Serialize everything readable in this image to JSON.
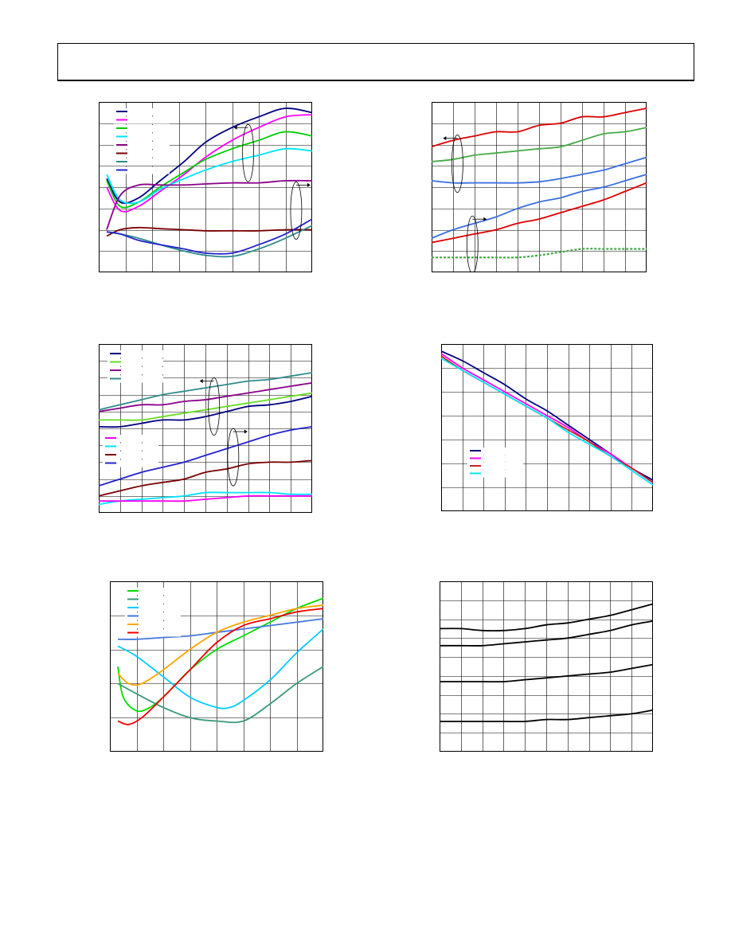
{
  "page": {
    "background": "#ffffff",
    "line_color": "#000000"
  },
  "chart_data": [
    {
      "id": "chart-1",
      "type": "line",
      "title": "",
      "xlabel": "",
      "ylabel": "",
      "xlim": [
        0,
        8
      ],
      "ylim": [
        0,
        8
      ],
      "grid": true,
      "legend": "top-left",
      "annotations": [
        {
          "kind": "ellipse-arrow",
          "cx": 5.6,
          "cy": 5.6,
          "direction": "left"
        },
        {
          "kind": "ellipse-arrow",
          "cx": 7.4,
          "cy": 2.9,
          "direction": "right"
        }
      ],
      "series": [
        {
          "color": "#000080",
          "x": [
            0.3,
            0.8,
            1.5,
            2.3,
            3.2,
            4.0,
            5.0,
            6.0,
            7.0,
            8.0
          ],
          "y": [
            4.4,
            3.3,
            3.5,
            4.3,
            5.2,
            6.1,
            6.8,
            7.3,
            7.7,
            7.5
          ]
        },
        {
          "color": "#ff00ff",
          "x": [
            0.3,
            0.8,
            1.5,
            2.3,
            3.2,
            4.0,
            5.0,
            6.0,
            7.0,
            8.0
          ],
          "y": [
            4.0,
            2.9,
            3.1,
            3.8,
            4.6,
            5.4,
            6.2,
            6.8,
            7.3,
            7.4
          ]
        },
        {
          "color": "#00cc00",
          "x": [
            0.3,
            0.8,
            1.5,
            2.3,
            3.2,
            4.0,
            5.0,
            6.0,
            7.0,
            8.0
          ],
          "y": [
            4.3,
            3.1,
            3.3,
            4.0,
            4.7,
            5.3,
            5.8,
            6.2,
            6.6,
            6.4
          ]
        },
        {
          "color": "#00e5ff",
          "x": [
            0.3,
            0.8,
            1.5,
            2.3,
            3.2,
            4.0,
            5.0,
            6.0,
            7.0,
            8.0
          ],
          "y": [
            4.6,
            3.4,
            3.3,
            3.9,
            4.4,
            4.8,
            5.2,
            5.5,
            5.8,
            5.7
          ]
        },
        {
          "color": "#8b008b",
          "x": [
            0.3,
            0.8,
            1.5,
            2.3,
            3.2,
            4.0,
            5.0,
            6.0,
            7.0,
            8.0
          ],
          "y": [
            2.0,
            3.6,
            4.1,
            4.1,
            4.1,
            4.15,
            4.2,
            4.2,
            4.3,
            4.3
          ]
        },
        {
          "color": "#7a0000",
          "x": [
            0.3,
            0.8,
            1.5,
            2.3,
            3.2,
            4.0,
            5.0,
            6.0,
            7.0,
            8.0
          ],
          "y": [
            1.7,
            2.0,
            2.1,
            2.05,
            2.0,
            1.95,
            1.95,
            1.95,
            2.0,
            2.0
          ]
        },
        {
          "color": "#2e8b8b",
          "x": [
            0.3,
            0.8,
            1.5,
            2.3,
            3.2,
            4.0,
            5.0,
            6.0,
            7.0,
            8.0
          ],
          "y": [
            1.9,
            1.8,
            1.6,
            1.3,
            1.0,
            0.8,
            0.75,
            1.1,
            1.6,
            2.2
          ]
        },
        {
          "color": "#2222cc",
          "x": [
            0.3,
            0.8,
            1.5,
            2.3,
            3.2,
            4.0,
            5.0,
            6.0,
            7.0,
            8.0
          ],
          "y": [
            1.9,
            1.8,
            1.5,
            1.3,
            1.1,
            0.9,
            0.9,
            1.3,
            1.8,
            2.5
          ]
        }
      ]
    },
    {
      "id": "chart-2",
      "type": "line",
      "title": "",
      "xlabel": "",
      "ylabel": "",
      "xlim": [
        0,
        10
      ],
      "ylim": [
        0,
        8
      ],
      "grid": true,
      "legend": "none",
      "annotations": [
        {
          "kind": "ellipse-arrow",
          "cx": 1.2,
          "cy": 5.1,
          "direction": "left"
        },
        {
          "kind": "ellipse-arrow",
          "cx": 1.9,
          "cy": 1.3,
          "direction": "right"
        }
      ],
      "series": [
        {
          "color": "#dd0000",
          "x": [
            0,
            1,
            2,
            3,
            4,
            5,
            6,
            7,
            8,
            9,
            10
          ],
          "y": [
            5.9,
            6.2,
            6.4,
            6.6,
            6.6,
            6.9,
            7.0,
            7.3,
            7.3,
            7.5,
            7.7
          ]
        },
        {
          "color": "#44aa44",
          "x": [
            0,
            1,
            2,
            3,
            4,
            5,
            6,
            7,
            8,
            9,
            10
          ],
          "y": [
            5.2,
            5.3,
            5.5,
            5.6,
            5.7,
            5.8,
            5.9,
            6.2,
            6.5,
            6.6,
            6.8
          ]
        },
        {
          "color": "#3a6fe0",
          "x": [
            0,
            1,
            2,
            3,
            4,
            5,
            6,
            7,
            8,
            9,
            10
          ],
          "y": [
            4.3,
            4.2,
            4.2,
            4.2,
            4.2,
            4.25,
            4.4,
            4.6,
            4.8,
            5.1,
            5.4
          ]
        },
        {
          "color": "#3a6fe0",
          "x": [
            0,
            1,
            2,
            3,
            4,
            5,
            6,
            7,
            8,
            9,
            10
          ],
          "y": [
            1.6,
            2.0,
            2.3,
            2.6,
            3.0,
            3.3,
            3.5,
            3.8,
            4.0,
            4.3,
            4.6
          ]
        },
        {
          "color": "#dd0000",
          "x": [
            0,
            1,
            2,
            3,
            4,
            5,
            6,
            7,
            8,
            9,
            10
          ],
          "y": [
            1.4,
            1.6,
            1.8,
            2.0,
            2.3,
            2.5,
            2.8,
            3.1,
            3.4,
            3.8,
            4.2
          ]
        },
        {
          "color": "#44aa44",
          "x": [
            0,
            1,
            2,
            3,
            4,
            5,
            6,
            7,
            8,
            9,
            10
          ],
          "y": [
            0.7,
            0.7,
            0.7,
            0.7,
            0.7,
            0.8,
            0.95,
            1.1,
            1.1,
            1.1,
            1.1
          ],
          "dashed": true
        }
      ]
    },
    {
      "id": "chart-3",
      "type": "line",
      "title": "",
      "xlabel": "",
      "ylabel": "",
      "xlim": [
        0,
        10
      ],
      "ylim": [
        0,
        10
      ],
      "grid": true,
      "legend": "top-left",
      "annotations": [
        {
          "kind": "ellipse-arrow",
          "cx": 5.4,
          "cy": 6.3,
          "direction": "left"
        },
        {
          "kind": "ellipse-arrow",
          "cx": 6.3,
          "cy": 3.3,
          "direction": "right"
        }
      ],
      "series": [
        {
          "color": "#000080",
          "x": [
            0,
            1,
            2,
            3,
            4,
            5,
            6,
            7,
            8,
            9,
            10
          ],
          "y": [
            5.1,
            5.1,
            5.3,
            5.5,
            5.5,
            5.7,
            6.0,
            6.3,
            6.4,
            6.6,
            6.9
          ]
        },
        {
          "color": "#66dd22",
          "x": [
            0,
            1,
            2,
            3,
            4,
            5,
            6,
            7,
            8,
            9,
            10
          ],
          "y": [
            5.5,
            5.5,
            5.5,
            5.7,
            5.9,
            6.1,
            6.3,
            6.5,
            6.7,
            6.9,
            7.1
          ]
        },
        {
          "color": "#8b008b",
          "x": [
            0,
            1,
            2,
            3,
            4,
            5,
            6,
            7,
            8,
            9,
            10
          ],
          "y": [
            6.0,
            6.2,
            6.4,
            6.4,
            6.6,
            6.7,
            6.9,
            7.1,
            7.3,
            7.5,
            7.7
          ]
        },
        {
          "color": "#2e8b8b",
          "x": [
            0,
            1,
            2,
            3,
            4,
            5,
            6,
            7,
            8,
            9,
            10
          ],
          "y": [
            6.1,
            6.4,
            6.7,
            7.0,
            7.2,
            7.4,
            7.6,
            7.8,
            7.9,
            8.1,
            8.3
          ]
        },
        {
          "color": "#2222cc",
          "x": [
            0,
            1,
            2,
            3,
            4,
            5,
            6,
            7,
            8,
            9,
            10
          ],
          "y": [
            1.6,
            2.0,
            2.4,
            2.7,
            3.0,
            3.4,
            3.8,
            4.2,
            4.6,
            4.9,
            5.1
          ]
        },
        {
          "color": "#7a0000",
          "x": [
            0,
            1,
            2,
            3,
            4,
            5,
            6,
            7,
            8,
            9,
            10
          ],
          "y": [
            1.0,
            1.3,
            1.6,
            1.8,
            2.0,
            2.4,
            2.6,
            2.9,
            3.0,
            3.0,
            3.1
          ]
        },
        {
          "color": "#00e5ff",
          "x": [
            0,
            1,
            2,
            3,
            4,
            5,
            6,
            7,
            8,
            9,
            10
          ],
          "y": [
            0.5,
            0.7,
            0.8,
            0.9,
            1.0,
            1.2,
            1.2,
            1.2,
            1.2,
            1.1,
            1.1
          ]
        },
        {
          "color": "#ff00ff",
          "x": [
            0,
            1,
            2,
            3,
            4,
            5,
            6,
            7,
            8,
            9,
            10
          ],
          "y": [
            0.7,
            0.7,
            0.7,
            0.7,
            0.7,
            0.8,
            0.9,
            1.0,
            1.0,
            1.0,
            1.0
          ]
        }
      ]
    },
    {
      "id": "chart-4",
      "type": "line",
      "title": "",
      "xlabel": "",
      "ylabel": "",
      "xlim": [
        0,
        10
      ],
      "ylim": [
        0,
        7
      ],
      "grid": true,
      "legend": "bottom-left",
      "series": [
        {
          "color": "#000080",
          "x": [
            0,
            1,
            2,
            3,
            4,
            5,
            6,
            7,
            8,
            9,
            10
          ],
          "y": [
            6.7,
            6.3,
            5.8,
            5.3,
            4.7,
            4.2,
            3.6,
            3.0,
            2.4,
            1.8,
            1.3
          ]
        },
        {
          "color": "#ff00ff",
          "x": [
            0,
            1,
            2,
            3,
            4,
            5,
            6,
            7,
            8,
            9,
            10
          ],
          "y": [
            6.6,
            6.0,
            5.5,
            5.0,
            4.5,
            4.0,
            3.5,
            2.9,
            2.4,
            1.8,
            1.2
          ]
        },
        {
          "color": "#cc2222",
          "x": [
            0,
            1,
            2,
            3,
            4,
            5,
            6,
            7,
            8,
            9,
            10
          ],
          "y": [
            6.5,
            5.9,
            5.4,
            4.9,
            4.4,
            3.9,
            3.4,
            2.9,
            2.3,
            1.8,
            1.2
          ]
        },
        {
          "color": "#00e5ff",
          "x": [
            0,
            1,
            2,
            3,
            4,
            5,
            6,
            7,
            8,
            9,
            10
          ],
          "y": [
            6.4,
            5.9,
            5.4,
            4.9,
            4.4,
            3.9,
            3.3,
            2.8,
            2.3,
            1.7,
            1.1
          ]
        }
      ]
    },
    {
      "id": "chart-5",
      "type": "line",
      "title": "",
      "xlabel": "",
      "ylabel": "",
      "xlim": [
        0,
        8
      ],
      "ylim": [
        0,
        5
      ],
      "grid": true,
      "legend": "top-left",
      "series": [
        {
          "color": "#00dd00",
          "x": [
            0.3,
            0.5,
            1.0,
            1.5,
            2.0,
            2.5,
            3.0,
            4.0,
            5.0,
            6.0,
            7.0,
            8.0
          ],
          "y": [
            2.5,
            1.6,
            1.2,
            1.3,
            1.6,
            2.0,
            2.4,
            3.0,
            3.4,
            3.8,
            4.2,
            4.5
          ]
        },
        {
          "color": "#3a9a7a",
          "x": [
            0.3,
            1.0,
            2.0,
            3.0,
            4.0,
            5.0,
            6.0,
            7.0,
            8.0
          ],
          "y": [
            2.0,
            1.7,
            1.3,
            1.0,
            0.9,
            0.9,
            1.4,
            2.0,
            2.5
          ]
        },
        {
          "color": "#00ccff",
          "x": [
            0.3,
            1.0,
            2.0,
            3.0,
            4.0,
            4.5,
            5.0,
            6.0,
            7.0,
            8.0
          ],
          "y": [
            3.1,
            2.8,
            2.2,
            1.6,
            1.3,
            1.3,
            1.5,
            2.1,
            2.9,
            3.6
          ]
        },
        {
          "color": "#4477dd",
          "x": [
            0.3,
            1.0,
            2.0,
            3.0,
            4.0,
            5.0,
            6.0,
            7.0,
            8.0
          ],
          "y": [
            3.3,
            3.3,
            3.35,
            3.4,
            3.5,
            3.6,
            3.7,
            3.8,
            3.9
          ]
        },
        {
          "color": "#ffa500",
          "x": [
            0.3,
            0.7,
            1.2,
            2.0,
            3.0,
            4.0,
            5.0,
            6.0,
            7.0,
            8.0
          ],
          "y": [
            2.3,
            2.0,
            2.0,
            2.4,
            3.0,
            3.5,
            3.8,
            4.0,
            4.2,
            4.3
          ]
        },
        {
          "color": "#ee0000",
          "x": [
            0.3,
            0.7,
            1.2,
            2.0,
            3.0,
            4.0,
            5.0,
            6.0,
            7.0,
            8.0
          ],
          "y": [
            0.9,
            0.8,
            1.0,
            1.6,
            2.4,
            3.2,
            3.7,
            3.9,
            4.1,
            4.2
          ]
        }
      ]
    },
    {
      "id": "chart-6",
      "type": "line",
      "title": "",
      "xlabel": "",
      "ylabel": "",
      "xlim": [
        0,
        10
      ],
      "ylim": [
        0,
        9
      ],
      "grid": true,
      "legend": "none",
      "series": [
        {
          "color": "#000000",
          "x": [
            0,
            1,
            2,
            3,
            4,
            5,
            6,
            7,
            8,
            9,
            10
          ],
          "y": [
            6.5,
            6.5,
            6.4,
            6.4,
            6.5,
            6.7,
            6.8,
            7.0,
            7.2,
            7.5,
            7.8
          ]
        },
        {
          "color": "#000000",
          "x": [
            0,
            1,
            2,
            3,
            4,
            5,
            6,
            7,
            8,
            9,
            10
          ],
          "y": [
            5.6,
            5.6,
            5.6,
            5.7,
            5.8,
            5.9,
            6.0,
            6.2,
            6.4,
            6.7,
            6.9
          ]
        },
        {
          "color": "#000000",
          "x": [
            0,
            1,
            2,
            3,
            4,
            5,
            6,
            7,
            8,
            9,
            10
          ],
          "y": [
            3.7,
            3.7,
            3.7,
            3.7,
            3.8,
            3.9,
            4.0,
            4.1,
            4.2,
            4.4,
            4.6
          ]
        },
        {
          "color": "#000000",
          "x": [
            0,
            1,
            2,
            3,
            4,
            5,
            6,
            7,
            8,
            9,
            10
          ],
          "y": [
            1.6,
            1.6,
            1.6,
            1.6,
            1.6,
            1.7,
            1.7,
            1.8,
            1.9,
            2.0,
            2.2
          ]
        }
      ]
    }
  ]
}
